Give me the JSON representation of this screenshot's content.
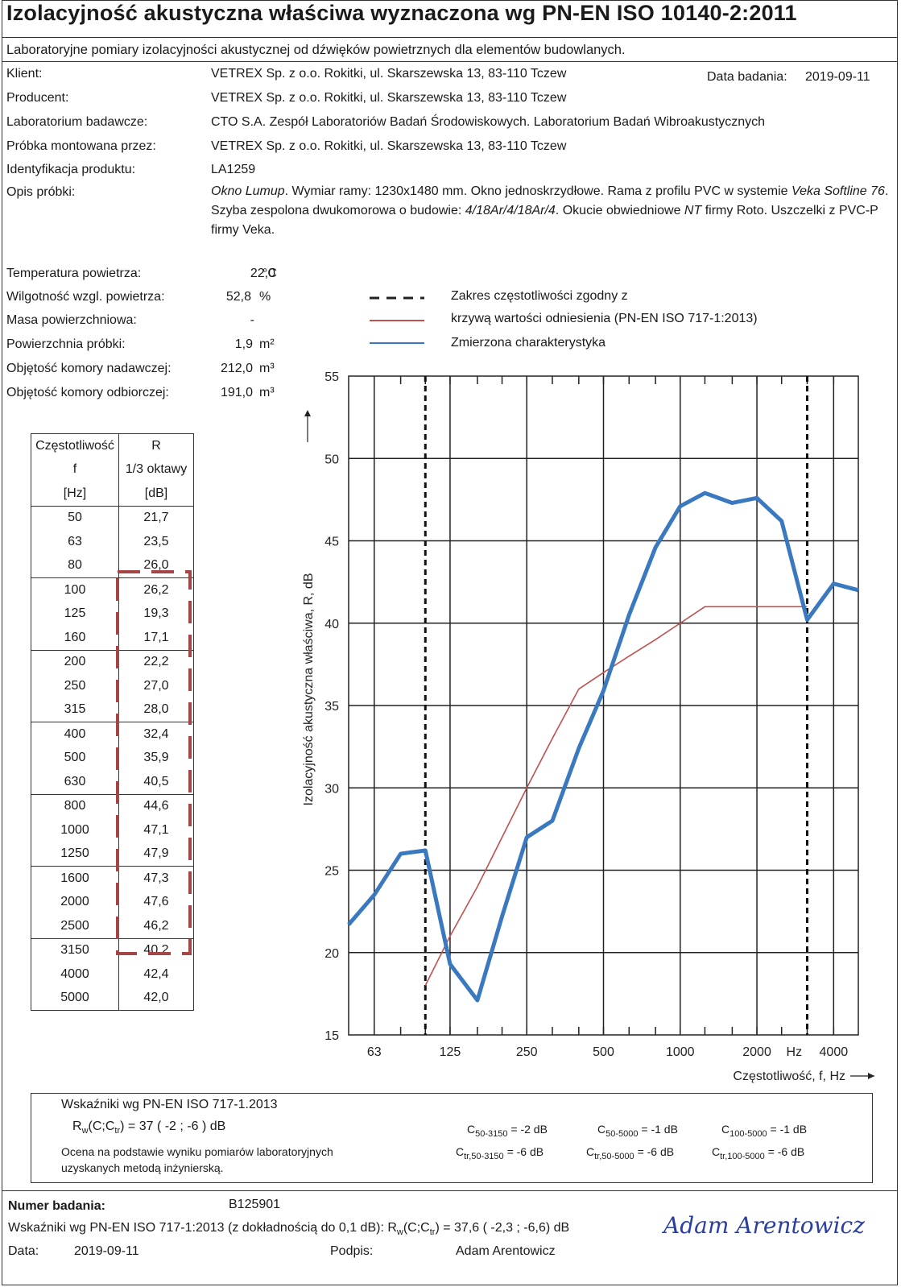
{
  "header": {
    "title": "Izolacyjność akustyczna właściwa wyznaczona wg PN-EN ISO 10140-2:2011",
    "subtitle": "Laboratoryjne pomiary izolacyjności akustycznej od dźwięków powietrznych dla elementów budowlanych."
  },
  "info": {
    "client_label": "Klient:",
    "client_value": "VETREX Sp. z o.o. Rokitki, ul. Skarszewska 13, 83-110 Tczew",
    "date_label": "Data badania:",
    "date_value": "2019-09-11",
    "producer_label": "Producent:",
    "producer_value": "VETREX Sp. z o.o. Rokitki, ul. Skarszewska 13, 83-110 Tczew",
    "lab_label": "Laboratorium badawcze:",
    "lab_value": "CTO S.A. Zespół Laboratoriów Badań Środowiskowych. Laboratorium Badań Wibroakustycznych",
    "mounted_label": "Próbka montowana przez:",
    "mounted_value": "VETREX Sp. z o.o. Rokitki, ul. Skarszewska 13, 83-110 Tczew",
    "product_id_label": "Identyfikacja produktu:",
    "product_id_value": "LA1259",
    "desc_label": "Opis próbki:",
    "desc_p1": "Okno Lumup",
    "desc_p2": ". Wymiar ramy: 1230x1480 mm. Okno jednoskrzydłowe. Rama z profilu PVC w systemie ",
    "desc_p3": "Veka Softline 76",
    "desc_p4": ". Szyba zespolona dwukomorowa o budowie: ",
    "desc_p5": "4/18Ar/4/18Ar/4",
    "desc_p6": ". Okucie obwiedniowe ",
    "desc_p7": "NT",
    "desc_p8": " firmy Roto. Uszczelki z PVC-P firmy Veka."
  },
  "conditions": [
    {
      "label": "Temperatura powietrza:",
      "value": "22,0",
      "unit": "°C"
    },
    {
      "label": "Wilgotność wzgl. powietrza:",
      "value": "52,8",
      "unit": "%"
    },
    {
      "label": "Masa powierzchniowa:",
      "value": "-",
      "unit": ""
    },
    {
      "label": "Powierzchnia próbki:",
      "value": "1,9",
      "unit": "m²"
    },
    {
      "label": "Objętość komory nadawczej:",
      "value": "212,0",
      "unit": "m³"
    },
    {
      "label": "Objętość komory odbiorczej:",
      "value": "191,0",
      "unit": "m³"
    }
  ],
  "legend": {
    "range_line1": "Zakres częstotliwości zgodny z",
    "reference": "krzywą wartości odniesienia (PN-EN ISO 717-1:2013)",
    "measured": "Zmierzona charakterystyka"
  },
  "table": {
    "h_f": [
      "Częstotliwość",
      "f",
      "[Hz]"
    ],
    "h_r": [
      "R",
      "1/3 oktawy",
      "[dB]"
    ],
    "freqs": [
      "50",
      "63",
      "80",
      "100",
      "125",
      "160",
      "200",
      "250",
      "315",
      "400",
      "500",
      "630",
      "800",
      "1000",
      "1250",
      "1600",
      "2000",
      "2500",
      "3150",
      "4000",
      "5000"
    ],
    "values": [
      "21,7",
      "23,5",
      "26,0",
      "26,2",
      "19,3",
      "17,1",
      "22,2",
      "27,0",
      "28,0",
      "32,4",
      "35,9",
      "40,5",
      "44,6",
      "47,1",
      "47,9",
      "47,3",
      "47,6",
      "46,2",
      "40,2",
      "42,4",
      "42,0"
    ]
  },
  "chart_data": {
    "type": "line",
    "ylabel": "Izolacyjność akustyczna właściwa, R, dB",
    "xlabel": "Częstotliwość, f, Hz",
    "x_unit_label": "Hz",
    "ylim": [
      15,
      55
    ],
    "yticks": [
      15,
      20,
      25,
      30,
      35,
      40,
      45,
      50,
      55
    ],
    "xscale": "log",
    "xtick_labels": [
      "63",
      "125",
      "250",
      "500",
      "1000",
      "2000",
      "4000"
    ],
    "x": [
      50,
      63,
      80,
      100,
      125,
      160,
      200,
      250,
      315,
      400,
      500,
      630,
      800,
      1000,
      1250,
      1600,
      2000,
      2500,
      3150,
      4000,
      5000
    ],
    "series": [
      {
        "name": "Zmierzona charakterystyka",
        "color": "#3a78c0",
        "values": [
          21.7,
          23.5,
          26.0,
          26.2,
          19.3,
          17.1,
          22.2,
          27.0,
          28.0,
          32.4,
          35.9,
          40.5,
          44.6,
          47.1,
          47.9,
          47.3,
          47.6,
          46.2,
          40.2,
          42.4,
          42.0
        ]
      },
      {
        "name": "krzywą wartości odniesienia (PN-EN ISO 717-1:2013)",
        "color": "#c0504d",
        "x": [
          100,
          125,
          160,
          200,
          250,
          315,
          400,
          500,
          630,
          800,
          1000,
          1250,
          1600,
          2000,
          2500,
          3150
        ],
        "values": [
          18,
          21,
          24,
          27,
          30,
          33,
          36,
          37,
          38,
          39,
          40,
          41,
          41,
          41,
          41,
          41
        ]
      }
    ],
    "range_markers_hz": [
      100,
      3150
    ],
    "grid": true
  },
  "indices": {
    "title": "Wskaźniki wg PN-EN ISO 717-1.2013",
    "rw_text": "= 37 ( -2 ; -6 ) dB",
    "note1": "Ocena na podstawie wyniku pomiarów laboratoryjnych",
    "note2": "uzyskanych metodą inżynierską.",
    "c_50_3150": "= -2 dB",
    "c_50_5000": "= -1 dB",
    "c_100_5000": "= -1 dB",
    "ctr_50_3150": "= -6 dB",
    "ctr_50_5000": "= -6 dB",
    "ctr_100_5000": "= -6 dB"
  },
  "footer": {
    "number_label": "Numer badania:",
    "number_value": "B125901",
    "precise_text_a": "Wskaźniki wg PN-EN ISO 717-1:2013 (z dokładnością do 0,1 dB): R",
    "precise_text_b": "(C;C",
    "precise_text_c": ") = 37,6 ( -2,3 ; -6,6) dB",
    "date_label": "Data:",
    "date_value": "2019-09-11",
    "sign_label": "Podpis:",
    "signer": "Adam Arentowicz",
    "signature": "Adam Arentowicz"
  }
}
